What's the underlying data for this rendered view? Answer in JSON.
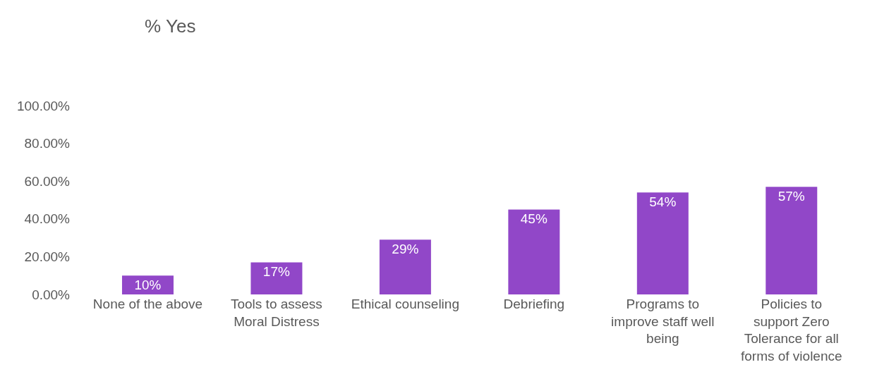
{
  "chart_data": {
    "type": "bar",
    "title": "% Yes",
    "categories": [
      "None of the above",
      "Tools to assess Moral Distress",
      "Ethical counseling",
      "Debriefing",
      "Programs to improve staff well being",
      "Policies to support Zero Tolerance for all forms of violence"
    ],
    "values": [
      10,
      17,
      29,
      45,
      54,
      57
    ],
    "value_labels": [
      "10%",
      "17%",
      "29%",
      "45%",
      "54%",
      "57%"
    ],
    "color": "#9147c8",
    "ylim": [
      0,
      100
    ],
    "yticks": [
      {
        "value": 0,
        "label": "0.00%"
      },
      {
        "value": 20,
        "label": "20.00%"
      },
      {
        "value": 40,
        "label": "40.00%"
      },
      {
        "value": 60,
        "label": "60.00%"
      },
      {
        "value": 80,
        "label": "80.00%"
      },
      {
        "value": 100,
        "label": "100.00%"
      }
    ],
    "grid": false
  }
}
